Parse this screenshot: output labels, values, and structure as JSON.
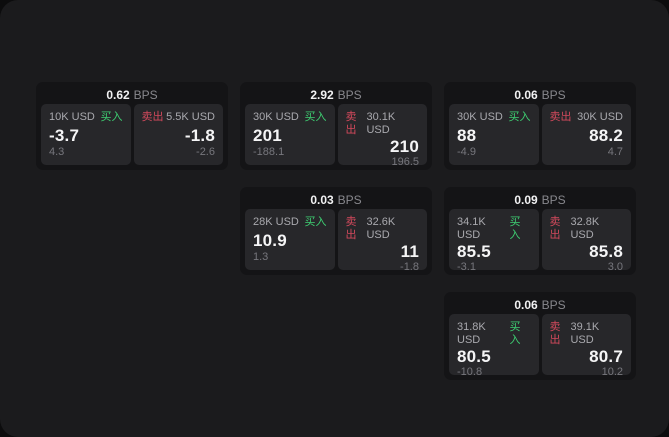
{
  "colors": {
    "page_background": "#0c0c0d",
    "panel_background": "#1b1b1d",
    "card_background": "#141416",
    "subpanel_background": "#27272a",
    "buy_green": "#3ecf72",
    "sell_red": "#d3495c"
  },
  "labels": {
    "bps_unit": "BPS",
    "buy": "买入",
    "sell": "卖出"
  },
  "cards": [
    {
      "row": 1,
      "col": 1,
      "bps": "0.62",
      "buy": {
        "size": "10K USD",
        "side": "买入",
        "price": "-3.7",
        "delta": "4.3"
      },
      "sell": {
        "size": "5.5K USD",
        "side": "卖出",
        "price": "-1.8",
        "delta": "-2.6"
      }
    },
    {
      "row": 1,
      "col": 2,
      "bps": "2.92",
      "buy": {
        "size": "30K USD",
        "side": "买入",
        "price": "201",
        "delta": "-188.1"
      },
      "sell": {
        "size": "30.1K USD",
        "side": "卖出",
        "price": "210",
        "delta": "196.5"
      }
    },
    {
      "row": 1,
      "col": 3,
      "bps": "0.06",
      "buy": {
        "size": "30K USD",
        "side": "买入",
        "price": "88",
        "delta": "-4.9"
      },
      "sell": {
        "size": "30K USD",
        "side": "卖出",
        "price": "88.2",
        "delta": "4.7"
      }
    },
    {
      "row": 2,
      "col": 2,
      "bps": "0.03",
      "buy": {
        "size": "28K USD",
        "side": "买入",
        "price": "10.9",
        "delta": "1.3"
      },
      "sell": {
        "size": "32.6K USD",
        "side": "卖出",
        "price": "11",
        "delta": "-1.8"
      }
    },
    {
      "row": 2,
      "col": 3,
      "bps": "0.09",
      "buy": {
        "size": "34.1K USD",
        "side": "买入",
        "price": "85.5",
        "delta": "-3.1"
      },
      "sell": {
        "size": "32.8K USD",
        "side": "卖出",
        "price": "85.8",
        "delta": "3.0"
      }
    },
    {
      "row": 3,
      "col": 3,
      "bps": "0.06",
      "buy": {
        "size": "31.8K USD",
        "side": "买入",
        "price": "80.5",
        "delta": "-10.8"
      },
      "sell": {
        "size": "39.1K USD",
        "side": "卖出",
        "price": "80.7",
        "delta": "10.2"
      }
    }
  ]
}
